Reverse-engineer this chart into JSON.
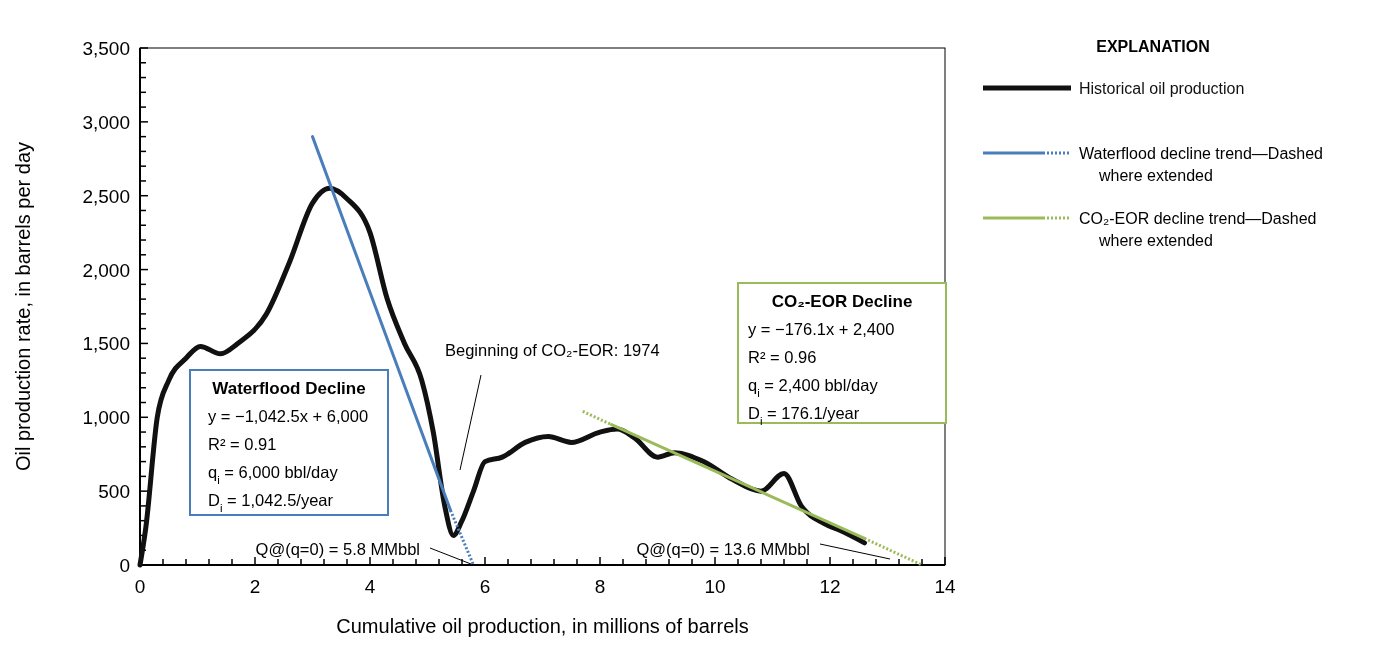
{
  "chart_data": {
    "type": "line",
    "xlabel": "Cumulative oil production, in millions of barrels",
    "ylabel": "Oil production rate, in barrels per day",
    "legend_title": "EXPLANATION",
    "legend": "right",
    "grid": false,
    "line_style": "solid",
    "xlim": [
      0,
      14
    ],
    "ylim": [
      0,
      3500
    ],
    "xticks": [
      0,
      {
        "value": 0.4,
        "label": null
      },
      {
        "value": 0.8,
        "label": null
      },
      {
        "value": 1.2,
        "label": null
      },
      {
        "value": 1.6,
        "label": null
      },
      2,
      {
        "value": 2.4,
        "label": null
      },
      {
        "value": 2.8,
        "label": null
      },
      {
        "value": 3.2,
        "label": null
      },
      {
        "value": 3.6,
        "label": null
      },
      4,
      {
        "value": 4.4,
        "label": null
      },
      {
        "value": 4.8,
        "label": null
      },
      {
        "value": 5.2,
        "label": null
      },
      {
        "value": 5.6,
        "label": null
      },
      6,
      {
        "value": 6.4,
        "label": null
      },
      {
        "value": 6.8,
        "label": null
      },
      {
        "value": 7.2,
        "label": null
      },
      {
        "value": 7.6,
        "label": null
      },
      8,
      {
        "value": 8.4,
        "label": null
      },
      {
        "value": 8.8,
        "label": null
      },
      {
        "value": 9.2,
        "label": null
      },
      {
        "value": 9.6,
        "label": null
      },
      10,
      {
        "value": 10.4,
        "label": null
      },
      {
        "value": 10.8,
        "label": null
      },
      {
        "value": 11.2,
        "label": null
      },
      {
        "value": 11.6,
        "label": null
      },
      12,
      {
        "value": 12.4,
        "label": null
      },
      {
        "value": 12.8,
        "label": null
      },
      {
        "value": 13.2,
        "label": null
      },
      {
        "value": 13.6,
        "label": null
      },
      14
    ],
    "yticks": [
      0,
      {
        "value": 100,
        "label": null
      },
      {
        "value": 200,
        "label": null
      },
      {
        "value": 300,
        "label": null
      },
      {
        "value": 400,
        "label": null
      },
      500,
      {
        "value": 600,
        "label": null
      },
      {
        "value": 700,
        "label": null
      },
      {
        "value": 800,
        "label": null
      },
      {
        "value": 900,
        "label": null
      },
      {
        "value": 1000,
        "label": "1,000"
      },
      {
        "value": 1100,
        "label": null
      },
      {
        "value": 1200,
        "label": null
      },
      {
        "value": 1300,
        "label": null
      },
      {
        "value": 1400,
        "label": null
      },
      {
        "value": 1500,
        "label": "1,500"
      },
      {
        "value": 1600,
        "label": null
      },
      {
        "value": 1700,
        "label": null
      },
      {
        "value": 1800,
        "label": null
      },
      {
        "value": 1900,
        "label": null
      },
      {
        "value": 2000,
        "label": "2,000"
      },
      {
        "value": 2100,
        "label": null
      },
      {
        "value": 2200,
        "label": null
      },
      {
        "value": 2300,
        "label": null
      },
      {
        "value": 2400,
        "label": null
      },
      {
        "value": 2500,
        "label": "2,500"
      },
      {
        "value": 2600,
        "label": null
      },
      {
        "value": 2700,
        "label": null
      },
      {
        "value": 2800,
        "label": null
      },
      {
        "value": 2900,
        "label": null
      },
      {
        "value": 3000,
        "label": "3,000"
      },
      {
        "value": 3100,
        "label": null
      },
      {
        "value": 3200,
        "label": null
      },
      {
        "value": 3300,
        "label": null
      },
      {
        "value": 3400,
        "label": null
      },
      {
        "value": 3500,
        "label": "3,500"
      }
    ],
    "series": [
      {
        "name": "Historical oil production",
        "color": "#111111",
        "x": [
          0,
          0.1,
          0.3,
          0.5,
          0.8,
          1.05,
          1.4,
          1.7,
          2.2,
          2.6,
          3.0,
          3.3,
          3.6,
          4.0,
          4.3,
          4.6,
          4.9,
          5.1,
          5.3,
          5.45,
          5.6,
          5.8,
          6.0,
          6.3,
          6.7,
          7.1,
          7.5,
          8.0,
          8.3,
          8.6,
          9.0,
          9.3,
          9.8,
          10.3,
          10.8,
          11.2,
          11.5,
          11.9,
          12.2,
          12.6
        ],
        "values": [
          0,
          250,
          1000,
          1250,
          1400,
          1480,
          1430,
          1500,
          1700,
          2050,
          2450,
          2550,
          2480,
          2250,
          1800,
          1500,
          1250,
          900,
          400,
          200,
          300,
          500,
          700,
          730,
          830,
          870,
          830,
          900,
          920,
          860,
          730,
          760,
          700,
          580,
          500,
          620,
          400,
          280,
          230,
          150
        ]
      },
      {
        "name": "Waterflood decline trend—Dashed where extended",
        "color": "#4a7ebb",
        "x": [
          3.0,
          5.4
        ],
        "values": [
          2900,
          370
        ]
      },
      {
        "name": "CO₂-EOR decline trend—Dashed where extended",
        "color": "#9bbb59",
        "x": [
          8.2,
          12.6
        ],
        "values": [
          950,
          180
        ]
      },
      {
        "color": "#4a7ebb",
        "line_style": "dotted",
        "x": [
          5.4,
          5.8
        ],
        "values": [
          370,
          0
        ]
      },
      {
        "color": "#9bbb59",
        "line_style": "dotted",
        "x": [
          7.7,
          8.2
        ],
        "values": [
          1040,
          950
        ]
      },
      {
        "color": "#9bbb59",
        "line_style": "dotted",
        "x": [
          12.6,
          13.6
        ],
        "values": [
          180,
          0
        ]
      }
    ],
    "annotations": [
      "Waterflood Decline\ny = −1,042.5x + 6,000\nR² = 0.91\nq$_{i}$ = 6,000 bbl/day\nD$_{i}$ = 1,042.5/year",
      "CO₂-EOR Decline\ny = −176.1x + 2,400\nR² = 0.96\nq$_{i}$ = 2,400 bbl/day\nD$_{i}$ = 176.1/year",
      "Beginning of CO₂-EOR: 1974",
      {
        "text": "Q@(q=0) = 5.8 MMbbl",
        "x": 5.8,
        "y": 0
      },
      "Q@(q=0) = 13.6 MMbbl"
    ]
  }
}
